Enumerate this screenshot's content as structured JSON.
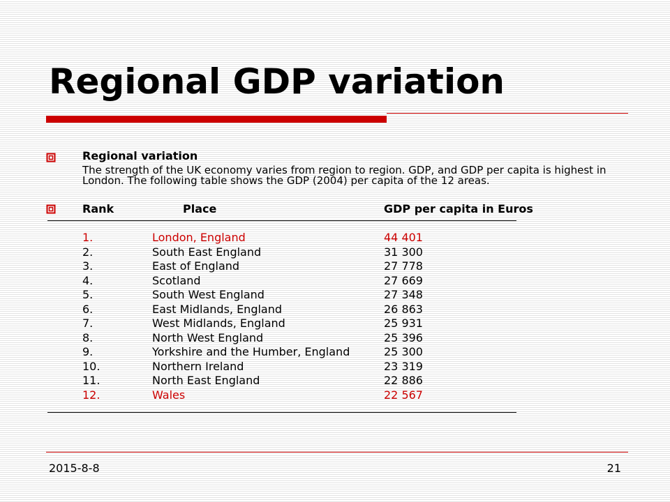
{
  "title": "Regional GDP variation",
  "accent_color": "#cc0000",
  "bullet_icon": "hollow-square-bullet",
  "section": {
    "heading": "Regional variation",
    "text": "The strength of the UK economy varies from region to region. GDP, and GDP per capita is highest in London. The following table shows the GDP (2004) per capita of the 12 areas."
  },
  "table": {
    "headers": {
      "rank": "Rank",
      "place": "Place",
      "gdp": "GDP per capita in Euros"
    },
    "rows": [
      {
        "rank": "1.",
        "place": "London, England",
        "gdp": "44 401",
        "highlight": true
      },
      {
        "rank": "2.",
        "place": "South East England",
        "gdp": "31 300",
        "highlight": false
      },
      {
        "rank": "3.",
        "place": "East of England",
        "gdp": "27 778",
        "highlight": false
      },
      {
        "rank": "4.",
        "place": "Scotland",
        "gdp": "27 669",
        "highlight": false
      },
      {
        "rank": "5.",
        "place": "South West England",
        "gdp": "27 348",
        "highlight": false
      },
      {
        "rank": "6.",
        "place": "East Midlands, England",
        "gdp": "26 863",
        "highlight": false
      },
      {
        "rank": "7.",
        "place": "West Midlands, England",
        "gdp": "25 931",
        "highlight": false
      },
      {
        "rank": "8.",
        "place": "North West England",
        "gdp": "25 396",
        "highlight": false
      },
      {
        "rank": "9.",
        "place": "Yorkshire and the Humber, England",
        "gdp": "25 300",
        "highlight": false
      },
      {
        "rank": "10.",
        "place": "Northern Ireland",
        "gdp": "23 319",
        "highlight": false
      },
      {
        "rank": "11.",
        "place": "North East England",
        "gdp": "22 886",
        "highlight": false
      },
      {
        "rank": "12.",
        "place": "Wales",
        "gdp": "22 567",
        "highlight": true
      }
    ]
  },
  "footer": {
    "date": "2015-8-8",
    "page": "21"
  }
}
